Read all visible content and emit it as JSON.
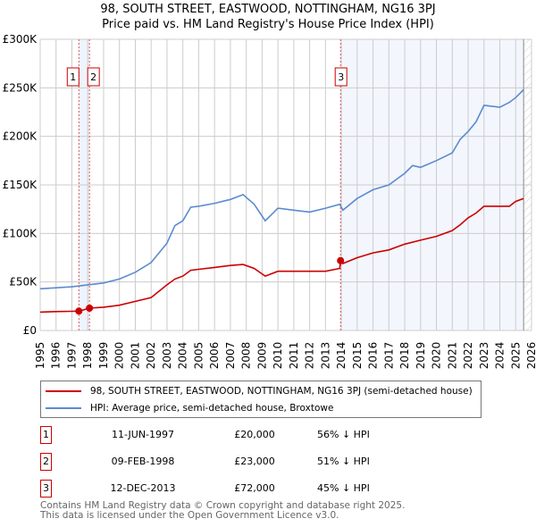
{
  "chart_data": {
    "type": "line",
    "title": "98, SOUTH STREET, EASTWOOD, NOTTINGHAM, NG16 3PJ",
    "subtitle": "Price paid vs. HM Land Registry's House Price Index (HPI)",
    "xlim": [
      1995,
      2026
    ],
    "ylim": [
      0,
      300000
    ],
    "x_ticks": [
      "1995",
      "1996",
      "1997",
      "1998",
      "1999",
      "2000",
      "2001",
      "2002",
      "2003",
      "2004",
      "2005",
      "2006",
      "2007",
      "2008",
      "2009",
      "2010",
      "2011",
      "2012",
      "2013",
      "2014",
      "2015",
      "2016",
      "2017",
      "2018",
      "2019",
      "2020",
      "2021",
      "2022",
      "2023",
      "2024",
      "2025",
      "2026"
    ],
    "y_ticks": [
      {
        "v": 0,
        "label": "£0"
      },
      {
        "v": 50000,
        "label": "£50K"
      },
      {
        "v": 100000,
        "label": "£100K"
      },
      {
        "v": 150000,
        "label": "£150K"
      },
      {
        "v": 200000,
        "label": "£200K"
      },
      {
        "v": 250000,
        "label": "£250K"
      },
      {
        "v": 300000,
        "label": "£300K"
      }
    ],
    "grid": true,
    "series": [
      {
        "name": "98, SOUTH STREET, EASTWOOD, NOTTINGHAM, NG16 3PJ (semi-detached house)",
        "color": "#cc0000",
        "x": [
          1995,
          1996,
          1997,
          1997.45,
          1998.1,
          1999,
          2000,
          2001,
          2002,
          2003,
          2003.5,
          2004,
          2004.5,
          2005,
          2006,
          2007,
          2007.8,
          2008.5,
          2009.2,
          2010,
          2011,
          2012,
          2013,
          2013.9,
          2013.95,
          2014.1,
          2015,
          2016,
          2017,
          2018,
          2019,
          2020,
          2021,
          2021.5,
          2022,
          2022.5,
          2023,
          2024,
          2024.6,
          2025,
          2025.5
        ],
        "y": [
          19000,
          19500,
          19800,
          20000,
          23000,
          24000,
          26000,
          30000,
          34000,
          47000,
          53000,
          56000,
          62000,
          63000,
          65000,
          67000,
          68000,
          64000,
          56000,
          61000,
          61000,
          61000,
          61000,
          64000,
          72000,
          69000,
          75000,
          80000,
          83000,
          89000,
          93000,
          97000,
          103000,
          109000,
          116000,
          121000,
          128000,
          128000,
          128000,
          133000,
          136000
        ]
      },
      {
        "name": "HPI: Average price, semi-detached house, Broxtowe",
        "color": "#5b8bd0",
        "x": [
          1995,
          1996,
          1997,
          1998,
          1999,
          2000,
          2001,
          2002,
          2003,
          2003.5,
          2004,
          2004.5,
          2005,
          2006,
          2007,
          2007.8,
          2008.5,
          2009.2,
          2010,
          2011,
          2012,
          2013,
          2013.9,
          2014.1,
          2015,
          2016,
          2017,
          2018,
          2018.5,
          2019,
          2020,
          2021,
          2021.5,
          2022,
          2022.5,
          2023,
          2024,
          2024.6,
          2025,
          2025.5
        ],
        "y": [
          43000,
          44000,
          45000,
          47000,
          49000,
          53000,
          60000,
          70000,
          90000,
          108000,
          113000,
          127000,
          128000,
          131000,
          135000,
          140000,
          130000,
          113000,
          126000,
          124000,
          122000,
          126000,
          130000,
          124000,
          136000,
          145000,
          150000,
          162000,
          170000,
          168000,
          175000,
          183000,
          197000,
          205000,
          215000,
          232000,
          230000,
          235000,
          240000,
          248000
        ]
      }
    ],
    "sales": [
      {
        "n": "1",
        "x": 1997.44,
        "date": "11-JUN-1997",
        "price": "£20,000",
        "price_v": 20000,
        "hpi": "56% ↓ HPI"
      },
      {
        "n": "2",
        "x": 1998.11,
        "date": "09-FEB-1998",
        "price": "£23,000",
        "price_v": 23000,
        "hpi": "51% ↓ HPI"
      },
      {
        "n": "3",
        "x": 2013.95,
        "date": "12-DEC-2013",
        "price": "£72,000",
        "price_v": 72000,
        "hpi": "45% ↓ HPI"
      }
    ],
    "legend_placement": "below"
  },
  "footer": {
    "line1": "Contains HM Land Registry data © Crown copyright and database right 2025.",
    "line2": "This data is licensed under the Open Government Licence v3.0."
  }
}
